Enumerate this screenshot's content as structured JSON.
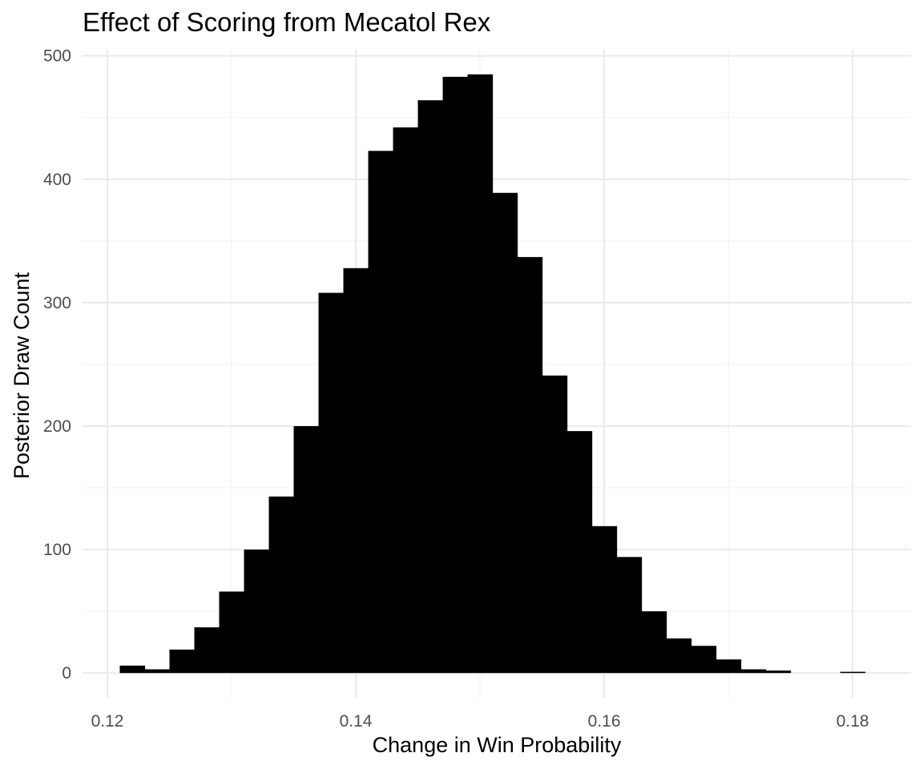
{
  "chart_data": {
    "type": "bar",
    "title": "Effect of Scoring from Mecatol Rex",
    "xlabel": "Change in Win Probability",
    "ylabel": "Posterior Draw Count",
    "xlim": [
      0.118,
      0.1847
    ],
    "ylim": [
      -20,
      505
    ],
    "x_ticks": [
      0.12,
      0.14,
      0.16,
      0.18
    ],
    "x_tick_labels": [
      "0.12",
      "0.14",
      "0.16",
      "0.18"
    ],
    "y_ticks": [
      0,
      100,
      200,
      300,
      400,
      500
    ],
    "y_tick_labels": [
      "0",
      "100",
      "200",
      "300",
      "400",
      "500"
    ],
    "x_minor_ticks": [
      0.13,
      0.15,
      0.17
    ],
    "y_minor_ticks": [
      50,
      150,
      250,
      350,
      450
    ],
    "grid": true,
    "legend": "none",
    "bar_color": "#000000",
    "bin_width": 0.002,
    "bins": [
      {
        "x0": 0.121,
        "x1": 0.123,
        "count": 6
      },
      {
        "x0": 0.123,
        "x1": 0.125,
        "count": 3
      },
      {
        "x0": 0.125,
        "x1": 0.127,
        "count": 19
      },
      {
        "x0": 0.127,
        "x1": 0.129,
        "count": 37
      },
      {
        "x0": 0.129,
        "x1": 0.131,
        "count": 66
      },
      {
        "x0": 0.131,
        "x1": 0.133,
        "count": 100
      },
      {
        "x0": 0.133,
        "x1": 0.135,
        "count": 143
      },
      {
        "x0": 0.135,
        "x1": 0.137,
        "count": 200
      },
      {
        "x0": 0.137,
        "x1": 0.139,
        "count": 308
      },
      {
        "x0": 0.139,
        "x1": 0.141,
        "count": 328
      },
      {
        "x0": 0.141,
        "x1": 0.143,
        "count": 423
      },
      {
        "x0": 0.143,
        "x1": 0.145,
        "count": 442
      },
      {
        "x0": 0.145,
        "x1": 0.147,
        "count": 464
      },
      {
        "x0": 0.147,
        "x1": 0.149,
        "count": 483
      },
      {
        "x0": 0.149,
        "x1": 0.151,
        "count": 485
      },
      {
        "x0": 0.151,
        "x1": 0.153,
        "count": 389
      },
      {
        "x0": 0.153,
        "x1": 0.155,
        "count": 337
      },
      {
        "x0": 0.155,
        "x1": 0.157,
        "count": 241
      },
      {
        "x0": 0.157,
        "x1": 0.159,
        "count": 196
      },
      {
        "x0": 0.159,
        "x1": 0.161,
        "count": 119
      },
      {
        "x0": 0.161,
        "x1": 0.163,
        "count": 94
      },
      {
        "x0": 0.163,
        "x1": 0.165,
        "count": 50
      },
      {
        "x0": 0.165,
        "x1": 0.167,
        "count": 28
      },
      {
        "x0": 0.167,
        "x1": 0.169,
        "count": 22
      },
      {
        "x0": 0.169,
        "x1": 0.171,
        "count": 11
      },
      {
        "x0": 0.171,
        "x1": 0.173,
        "count": 3
      },
      {
        "x0": 0.173,
        "x1": 0.175,
        "count": 2
      },
      {
        "x0": 0.175,
        "x1": 0.177,
        "count": 0
      },
      {
        "x0": 0.177,
        "x1": 0.179,
        "count": 0
      },
      {
        "x0": 0.179,
        "x1": 0.181,
        "count": 1
      }
    ]
  }
}
